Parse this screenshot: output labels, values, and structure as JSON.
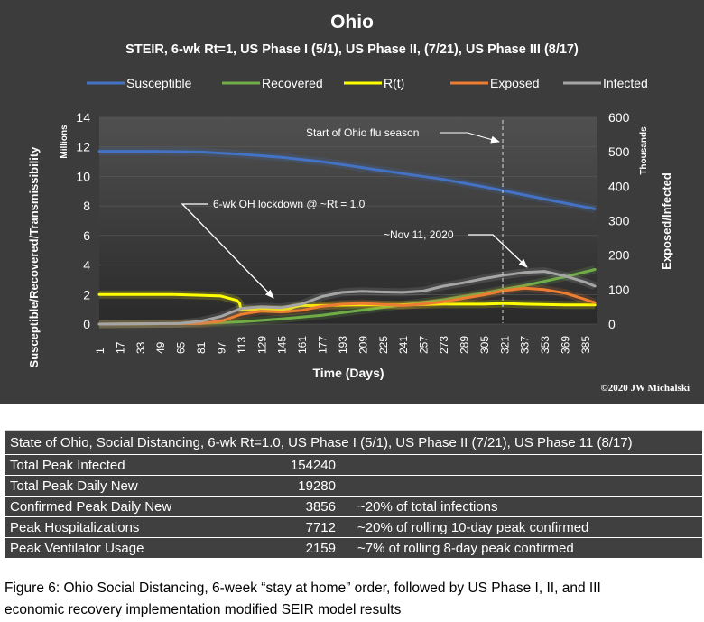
{
  "chart_data": {
    "type": "line",
    "title": "Ohio",
    "subtitle": "STEIR, 6-wk Rt=1, US Phase I (5/1), US Phase II, (7/21), US Phase III (8/17)",
    "xlabel": "Time (Days)",
    "ylabel_left": "Susceptible/Recovered/Transmissibility",
    "ylabel_right": "Exposed/Infected",
    "left_unit": "Millions",
    "right_unit": "Thousands",
    "ylim_left": [
      0,
      14
    ],
    "ylim_right": [
      0,
      600
    ],
    "x_ticks": [
      1,
      17,
      33,
      49,
      65,
      81,
      97,
      113,
      129,
      145,
      161,
      177,
      193,
      209,
      225,
      241,
      257,
      273,
      289,
      305,
      321,
      337,
      353,
      369,
      385
    ],
    "y_ticks_left": [
      0,
      2,
      4,
      6,
      8,
      10,
      12,
      14
    ],
    "y_ticks_right": [
      0,
      100,
      200,
      300,
      400,
      500,
      600
    ],
    "legend_position": "top",
    "series": [
      {
        "name": "Susceptible",
        "axis": "left",
        "color": "#4472c4",
        "x": [
          1,
          40,
          81,
          113,
          145,
          177,
          209,
          241,
          273,
          305,
          337,
          369,
          393
        ],
        "values": [
          11.7,
          11.7,
          11.65,
          11.5,
          11.3,
          11.0,
          10.6,
          10.2,
          9.8,
          9.3,
          8.75,
          8.2,
          7.8
        ]
      },
      {
        "name": "Recovered",
        "axis": "left",
        "color": "#70ad47",
        "x": [
          1,
          81,
          113,
          145,
          177,
          209,
          241,
          273,
          305,
          337,
          369,
          393
        ],
        "values": [
          0.0,
          0.05,
          0.15,
          0.35,
          0.6,
          0.95,
          1.3,
          1.65,
          2.1,
          2.6,
          3.2,
          3.7
        ]
      },
      {
        "name": "R(t)",
        "axis": "left",
        "color": "#ffff00",
        "x": [
          1,
          60,
          81,
          97,
          110,
          112,
          113,
          150,
          155,
          160,
          209,
          241,
          273,
          305,
          321,
          337,
          369,
          393
        ],
        "values": [
          2.0,
          2.0,
          1.95,
          1.9,
          1.6,
          1.4,
          1.0,
          1.0,
          1.15,
          1.25,
          1.3,
          1.3,
          1.35,
          1.35,
          1.4,
          1.35,
          1.3,
          1.3
        ]
      },
      {
        "name": "Exposed",
        "axis": "right",
        "color": "#ed7d31",
        "x": [
          1,
          81,
          97,
          113,
          129,
          145,
          161,
          177,
          193,
          209,
          225,
          241,
          257,
          273,
          289,
          305,
          321,
          337,
          353,
          369,
          385,
          393
        ],
        "values": [
          0,
          2,
          8,
          28,
          38,
          35,
          40,
          52,
          58,
          60,
          57,
          54,
          58,
          65,
          75,
          85,
          97,
          104,
          100,
          90,
          72,
          62
        ]
      },
      {
        "name": "Infected",
        "axis": "right",
        "color": "#a5a5a5",
        "x": [
          1,
          65,
          81,
          97,
          113,
          129,
          145,
          161,
          177,
          193,
          209,
          225,
          241,
          257,
          273,
          289,
          305,
          321,
          337,
          353,
          369,
          385,
          393
        ],
        "values": [
          0,
          2,
          8,
          22,
          45,
          50,
          48,
          58,
          80,
          92,
          95,
          93,
          92,
          96,
          110,
          120,
          132,
          142,
          150,
          153,
          140,
          122,
          110
        ]
      }
    ],
    "annotations": [
      {
        "text": "Start of Ohio flu season"
      },
      {
        "text": "6-wk OH lockdown @ ~Rt = 1.0"
      },
      {
        "text": "~Nov 11, 2020"
      }
    ],
    "credit": "©2020 JW Michalski"
  },
  "table": {
    "header": "State of Ohio, Social Distancing, 6-wk Rt=1.0, US Phase I (5/1), US Phase II (7/21), US Phase 11 (8/17)",
    "rows": [
      {
        "label": "Total Peak Infected",
        "value": "154240",
        "note": ""
      },
      {
        "label": "Total Peak Daily New",
        "value": "19280",
        "note": ""
      },
      {
        "label": "Confirmed Peak Daily New",
        "value": "3856",
        "note": "~20% of total infections"
      },
      {
        "label": "Peak Hospitalizations",
        "value": "7712",
        "note": "~20% of rolling 10-day peak confirmed"
      },
      {
        "label": "Peak Ventilator Usage",
        "value": "2159",
        "note": "~7% of rolling 8-day peak confirmed"
      }
    ]
  },
  "caption": {
    "line1": "Figure 6: Ohio Social Distancing, 6-week “stay at home” order, followed by US Phase I, II, and III",
    "line2": "economic recovery implementation modified SEIR model results"
  },
  "colors": {
    "panel_background": "#3c3c3c",
    "table_background": "#404040",
    "text_light": "#ffffff"
  }
}
